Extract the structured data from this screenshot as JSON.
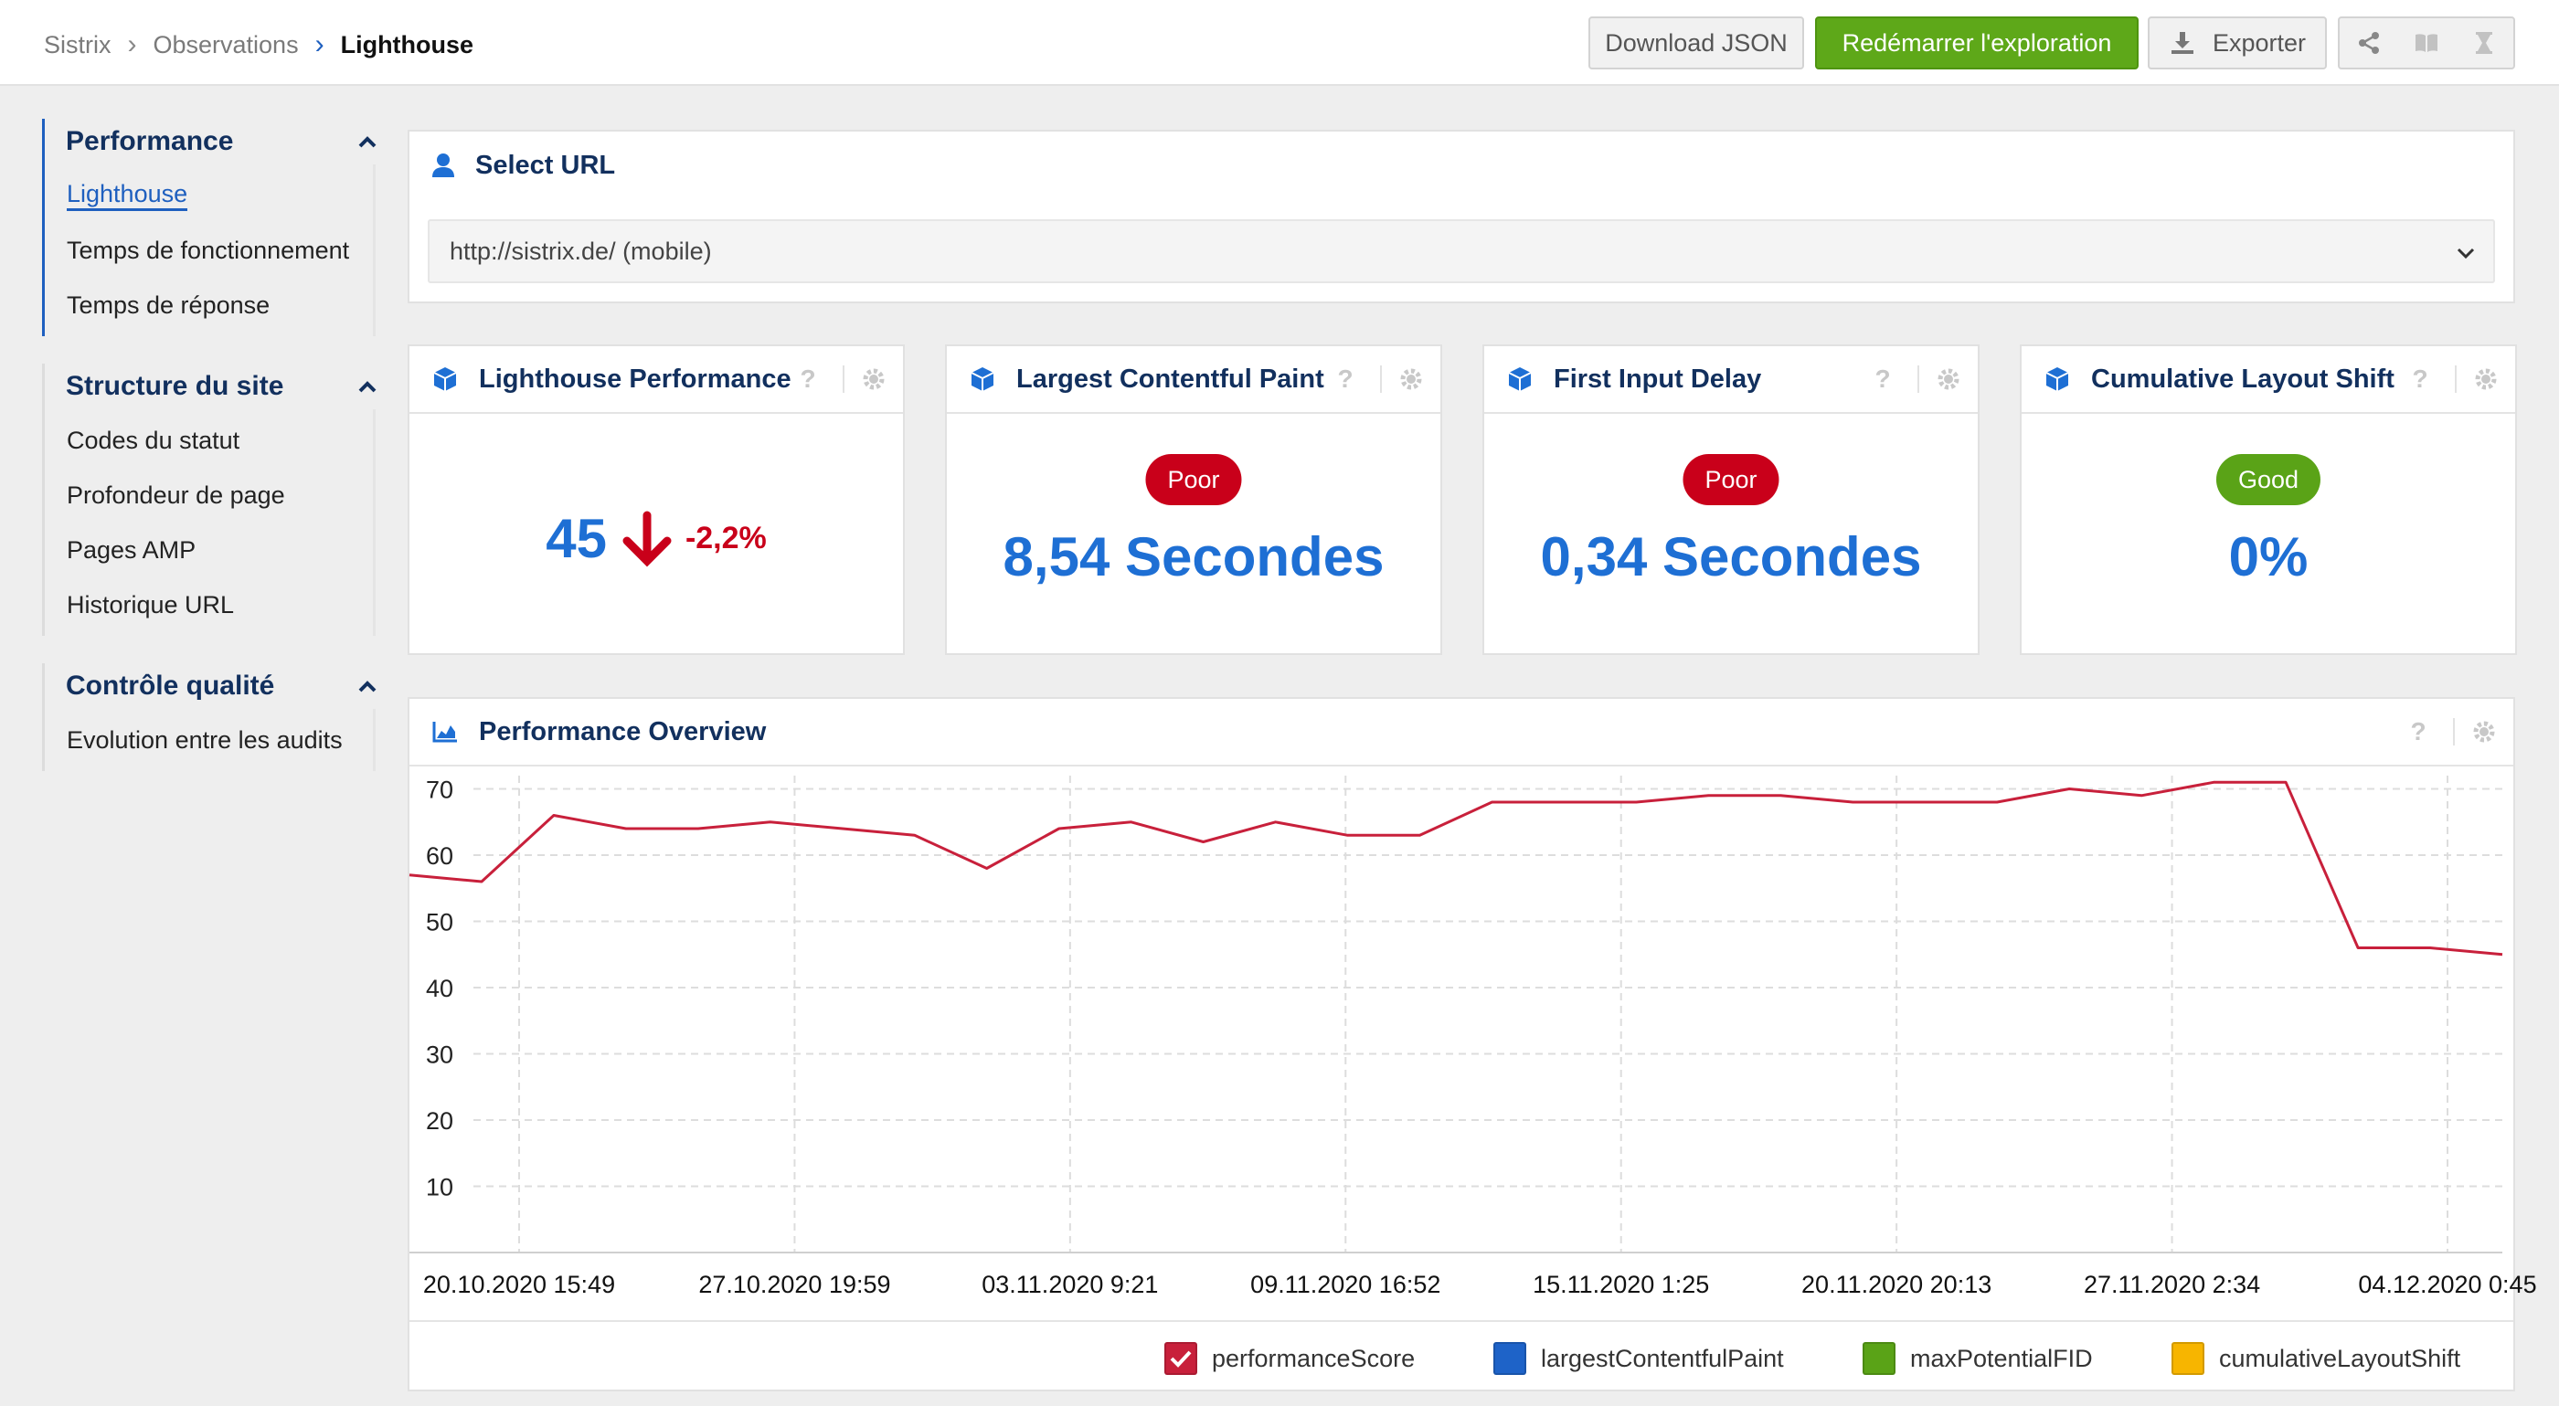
{
  "breadcrumb": [
    "Sistrix",
    "Observations",
    "Lighthouse"
  ],
  "toolbar": {
    "download_label": "Download JSON",
    "restart_label": "Redémarrer l'exploration",
    "export_label": "Exporter",
    "icons": [
      "share-icon",
      "book-icon",
      "hourglass-icon"
    ]
  },
  "sidebar": {
    "groups": [
      {
        "title": "Performance",
        "items": [
          "Lighthouse",
          "Temps de fonctionnement",
          "Temps de réponse"
        ],
        "active_item": "Lighthouse"
      },
      {
        "title": "Structure du site",
        "items": [
          "Codes du statut",
          "Profondeur de page",
          "Pages AMP",
          "Historique URL"
        ]
      },
      {
        "title": "Contrôle qualité",
        "items": [
          "Evolution entre les audits"
        ]
      }
    ]
  },
  "url_panel": {
    "title": "Select URL",
    "selected": "http://sistrix.de/ (mobile)"
  },
  "kpis": {
    "performance": {
      "title": "Lighthouse Performance",
      "value": "45",
      "change": "-2,2%"
    },
    "lcp": {
      "title": "Largest Contentful Paint",
      "badge": "Poor",
      "value": "8,54 Secondes"
    },
    "fid": {
      "title": "First Input Delay",
      "badge": "Poor",
      "value": "0,34 Secondes"
    },
    "cls": {
      "title": "Cumulative Layout Shift",
      "badge": "Good",
      "value": "0%"
    }
  },
  "help_symbol": "?",
  "colors": {
    "brand_blue": "#1e6fd4",
    "navy": "#12305e",
    "poor": "#c9001a",
    "good": "#5aa317",
    "series_line": "#c8203b"
  },
  "chart_panel": {
    "title": "Performance Overview"
  },
  "chart_data": {
    "type": "line",
    "title": "Performance Overview",
    "ylim": [
      0,
      72
    ],
    "yticks": [
      10,
      20,
      30,
      40,
      50,
      60,
      70
    ],
    "grid": true,
    "legend_position": "bottom-right",
    "x_tick_labels": [
      "20.10.2020 15:49",
      "27.10.2020 19:59",
      "03.11.2020 9:21",
      "09.11.2020 16:52",
      "15.11.2020 1:25",
      "20.11.2020 20:13",
      "27.11.2020 2:34",
      "04.12.2020 0:45"
    ],
    "series": [
      {
        "name": "performanceScore",
        "color": "#c8203b",
        "visible": true,
        "values": [
          57,
          56,
          66,
          64,
          64,
          65,
          64,
          63,
          58,
          64,
          65,
          62,
          65,
          63,
          63,
          68,
          68,
          68,
          69,
          69,
          68,
          68,
          68,
          70,
          69,
          71,
          71,
          46,
          46,
          45
        ]
      },
      {
        "name": "largestContentfulPaint",
        "color": "#1e63c8",
        "visible": false,
        "values": []
      },
      {
        "name": "maxPotentialFID",
        "color": "#5aa317",
        "visible": false,
        "values": []
      },
      {
        "name": "cumulativeLayoutShift",
        "color": "#f7b500",
        "visible": false,
        "values": []
      }
    ]
  }
}
